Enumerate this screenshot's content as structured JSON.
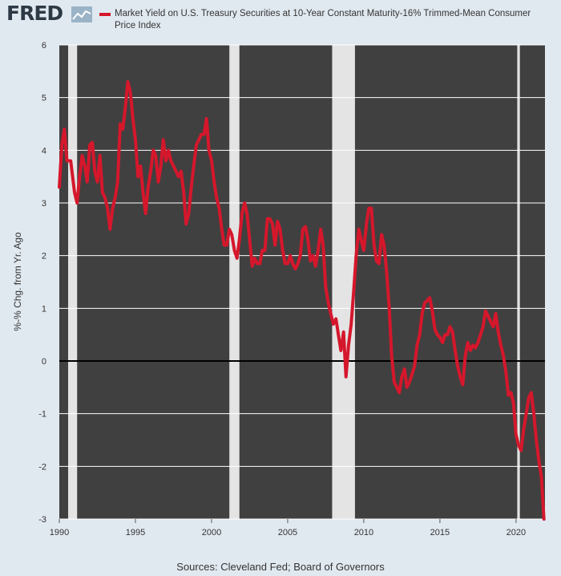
{
  "header": {
    "logo_text": "FRED",
    "legend": "Market Yield on U.S. Treasury Securities at 10-Year Constant Maturity-16% Trimmed-Mean Consumer Price Index"
  },
  "footer": {
    "source": "Sources: Cleveland Fed; Board of Governors"
  },
  "chart_data": {
    "type": "line",
    "ylabel": "%-% Chg. from Yr. Ago",
    "xlim": [
      1990,
      2021.9
    ],
    "ylim": [
      -3,
      6
    ],
    "x_ticks": [
      1990,
      1995,
      2000,
      2005,
      2010,
      2015,
      2020
    ],
    "y_ticks": [
      -3,
      -2,
      -1,
      0,
      1,
      2,
      3,
      4,
      5,
      6
    ],
    "recessions": [
      [
        1990.58,
        1991.17
      ],
      [
        2001.17,
        2001.83
      ],
      [
        2007.92,
        2009.42
      ],
      [
        2020.08,
        2020.25
      ]
    ],
    "colors": {
      "plot_bg": "#404040",
      "recession": "#e4e4e4",
      "series": "#d5172c",
      "zero_line": "#000000",
      "gridline": "#ffffff"
    },
    "series": [
      {
        "name": "Market Yield on U.S. Treasury Securities at 10-Year Constant Maturity-16% Trimmed-Mean Consumer Price Index",
        "data": [
          [
            1990.0,
            3.3
          ],
          [
            1990.17,
            4.1
          ],
          [
            1990.33,
            4.4
          ],
          [
            1990.5,
            3.8
          ],
          [
            1990.75,
            3.8
          ],
          [
            1991.0,
            3.2
          ],
          [
            1991.17,
            3.0
          ],
          [
            1991.33,
            3.5
          ],
          [
            1991.5,
            3.9
          ],
          [
            1991.67,
            3.7
          ],
          [
            1991.83,
            3.4
          ],
          [
            1992.0,
            4.1
          ],
          [
            1992.17,
            4.15
          ],
          [
            1992.33,
            3.6
          ],
          [
            1992.5,
            3.4
          ],
          [
            1992.67,
            3.9
          ],
          [
            1992.83,
            3.2
          ],
          [
            1993.0,
            3.1
          ],
          [
            1993.17,
            2.9
          ],
          [
            1993.33,
            2.5
          ],
          [
            1993.5,
            2.9
          ],
          [
            1993.67,
            3.1
          ],
          [
            1993.83,
            3.4
          ],
          [
            1994.0,
            4.5
          ],
          [
            1994.17,
            4.4
          ],
          [
            1994.33,
            4.8
          ],
          [
            1994.5,
            5.3
          ],
          [
            1994.67,
            5.1
          ],
          [
            1994.83,
            4.6
          ],
          [
            1995.0,
            4.2
          ],
          [
            1995.17,
            3.5
          ],
          [
            1995.33,
            3.7
          ],
          [
            1995.5,
            3.2
          ],
          [
            1995.67,
            2.8
          ],
          [
            1995.83,
            3.3
          ],
          [
            1996.0,
            3.6
          ],
          [
            1996.17,
            4.0
          ],
          [
            1996.33,
            3.9
          ],
          [
            1996.5,
            3.4
          ],
          [
            1996.67,
            3.7
          ],
          [
            1996.83,
            4.2
          ],
          [
            1997.0,
            3.8
          ],
          [
            1997.17,
            4.0
          ],
          [
            1997.33,
            3.8
          ],
          [
            1997.5,
            3.7
          ],
          [
            1997.67,
            3.6
          ],
          [
            1997.83,
            3.5
          ],
          [
            1998.0,
            3.6
          ],
          [
            1998.17,
            3.2
          ],
          [
            1998.33,
            2.6
          ],
          [
            1998.5,
            2.8
          ],
          [
            1998.67,
            3.3
          ],
          [
            1998.83,
            3.7
          ],
          [
            1999.0,
            4.1
          ],
          [
            1999.17,
            4.2
          ],
          [
            1999.33,
            4.3
          ],
          [
            1999.5,
            4.3
          ],
          [
            1999.67,
            4.6
          ],
          [
            1999.83,
            4.0
          ],
          [
            2000.0,
            3.8
          ],
          [
            2000.17,
            3.4
          ],
          [
            2000.33,
            3.1
          ],
          [
            2000.5,
            2.9
          ],
          [
            2000.67,
            2.5
          ],
          [
            2000.83,
            2.2
          ],
          [
            2001.0,
            2.2
          ],
          [
            2001.17,
            2.5
          ],
          [
            2001.33,
            2.4
          ],
          [
            2001.5,
            2.1
          ],
          [
            2001.67,
            1.95
          ],
          [
            2001.83,
            2.3
          ],
          [
            2002.0,
            2.8
          ],
          [
            2002.17,
            3.0
          ],
          [
            2002.33,
            2.8
          ],
          [
            2002.5,
            2.3
          ],
          [
            2002.67,
            1.8
          ],
          [
            2002.83,
            1.95
          ],
          [
            2003.0,
            1.85
          ],
          [
            2003.17,
            1.85
          ],
          [
            2003.33,
            2.1
          ],
          [
            2003.5,
            2.1
          ],
          [
            2003.67,
            2.7
          ],
          [
            2003.83,
            2.7
          ],
          [
            2004.0,
            2.6
          ],
          [
            2004.17,
            2.2
          ],
          [
            2004.33,
            2.65
          ],
          [
            2004.5,
            2.5
          ],
          [
            2004.67,
            2.1
          ],
          [
            2004.83,
            1.85
          ],
          [
            2005.0,
            1.85
          ],
          [
            2005.17,
            2.0
          ],
          [
            2005.33,
            1.85
          ],
          [
            2005.5,
            1.75
          ],
          [
            2005.67,
            1.85
          ],
          [
            2005.83,
            2.0
          ],
          [
            2006.0,
            2.5
          ],
          [
            2006.17,
            2.55
          ],
          [
            2006.33,
            2.3
          ],
          [
            2006.5,
            1.9
          ],
          [
            2006.67,
            2.0
          ],
          [
            2006.83,
            1.8
          ],
          [
            2007.0,
            2.1
          ],
          [
            2007.17,
            2.5
          ],
          [
            2007.33,
            2.2
          ],
          [
            2007.5,
            1.4
          ],
          [
            2007.67,
            1.1
          ],
          [
            2007.83,
            0.9
          ],
          [
            2008.0,
            0.7
          ],
          [
            2008.17,
            0.8
          ],
          [
            2008.33,
            0.5
          ],
          [
            2008.5,
            0.2
          ],
          [
            2008.67,
            0.55
          ],
          [
            2008.83,
            -0.3
          ],
          [
            2009.0,
            0.3
          ],
          [
            2009.17,
            0.7
          ],
          [
            2009.33,
            1.3
          ],
          [
            2009.5,
            2.0
          ],
          [
            2009.67,
            2.5
          ],
          [
            2009.83,
            2.3
          ],
          [
            2010.0,
            2.1
          ],
          [
            2010.17,
            2.6
          ],
          [
            2010.33,
            2.9
          ],
          [
            2010.5,
            2.9
          ],
          [
            2010.67,
            2.2
          ],
          [
            2010.83,
            1.9
          ],
          [
            2011.0,
            1.85
          ],
          [
            2011.17,
            2.4
          ],
          [
            2011.33,
            2.2
          ],
          [
            2011.5,
            1.7
          ],
          [
            2011.67,
            1.0
          ],
          [
            2011.83,
            0.1
          ],
          [
            2012.0,
            -0.4
          ],
          [
            2012.17,
            -0.5
          ],
          [
            2012.33,
            -0.6
          ],
          [
            2012.5,
            -0.3
          ],
          [
            2012.67,
            -0.15
          ],
          [
            2012.83,
            -0.5
          ],
          [
            2013.0,
            -0.4
          ],
          [
            2013.17,
            -0.25
          ],
          [
            2013.33,
            -0.1
          ],
          [
            2013.5,
            0.3
          ],
          [
            2013.67,
            0.5
          ],
          [
            2013.83,
            0.9
          ],
          [
            2014.0,
            1.1
          ],
          [
            2014.17,
            1.15
          ],
          [
            2014.33,
            1.2
          ],
          [
            2014.5,
            0.95
          ],
          [
            2014.67,
            0.6
          ],
          [
            2014.83,
            0.5
          ],
          [
            2015.0,
            0.45
          ],
          [
            2015.17,
            0.35
          ],
          [
            2015.33,
            0.5
          ],
          [
            2015.5,
            0.5
          ],
          [
            2015.67,
            0.65
          ],
          [
            2015.83,
            0.55
          ],
          [
            2016.0,
            0.2
          ],
          [
            2016.17,
            -0.1
          ],
          [
            2016.33,
            -0.3
          ],
          [
            2016.5,
            -0.45
          ],
          [
            2016.67,
            0.1
          ],
          [
            2016.83,
            0.35
          ],
          [
            2017.0,
            0.2
          ],
          [
            2017.17,
            0.3
          ],
          [
            2017.33,
            0.25
          ],
          [
            2017.5,
            0.35
          ],
          [
            2017.67,
            0.5
          ],
          [
            2017.83,
            0.65
          ],
          [
            2018.0,
            0.95
          ],
          [
            2018.17,
            0.85
          ],
          [
            2018.33,
            0.75
          ],
          [
            2018.5,
            0.65
          ],
          [
            2018.67,
            0.9
          ],
          [
            2018.83,
            0.55
          ],
          [
            2019.0,
            0.3
          ],
          [
            2019.17,
            0.1
          ],
          [
            2019.33,
            -0.2
          ],
          [
            2019.5,
            -0.65
          ],
          [
            2019.67,
            -0.6
          ],
          [
            2019.83,
            -0.8
          ],
          [
            2020.0,
            -1.4
          ],
          [
            2020.17,
            -1.6
          ],
          [
            2020.33,
            -1.7
          ],
          [
            2020.5,
            -1.3
          ],
          [
            2020.67,
            -1.0
          ],
          [
            2020.83,
            -0.7
          ],
          [
            2021.0,
            -0.6
          ],
          [
            2021.17,
            -1.0
          ],
          [
            2021.33,
            -1.5
          ],
          [
            2021.5,
            -1.9
          ],
          [
            2021.67,
            -2.2
          ],
          [
            2021.83,
            -3.0
          ]
        ]
      }
    ]
  }
}
